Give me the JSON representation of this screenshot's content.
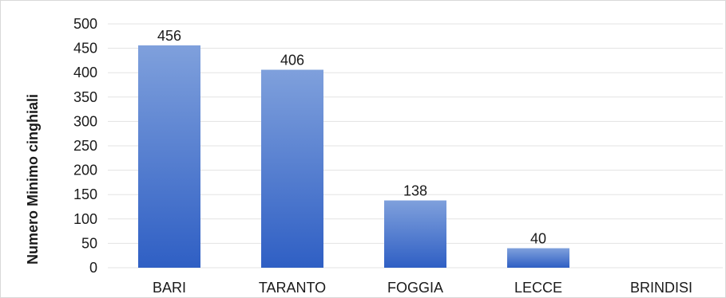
{
  "chart_data": {
    "type": "bar",
    "categories": [
      "BARI",
      "TARANTO",
      "FOGGIA",
      "LECCE",
      "BRINDISI"
    ],
    "values": [
      456,
      406,
      138,
      40,
      0
    ],
    "data_labels": [
      "456",
      "406",
      "138",
      "40",
      ""
    ],
    "title": "",
    "xlabel": "",
    "ylabel": "Numero Minimo cinghiali",
    "ylim": [
      0,
      500
    ],
    "yticks": [
      0,
      50,
      100,
      150,
      200,
      250,
      300,
      350,
      400,
      450,
      500
    ],
    "grid": true,
    "bar_color_top": "#7fa0dc",
    "bar_color_bottom": "#2f5fc4"
  }
}
